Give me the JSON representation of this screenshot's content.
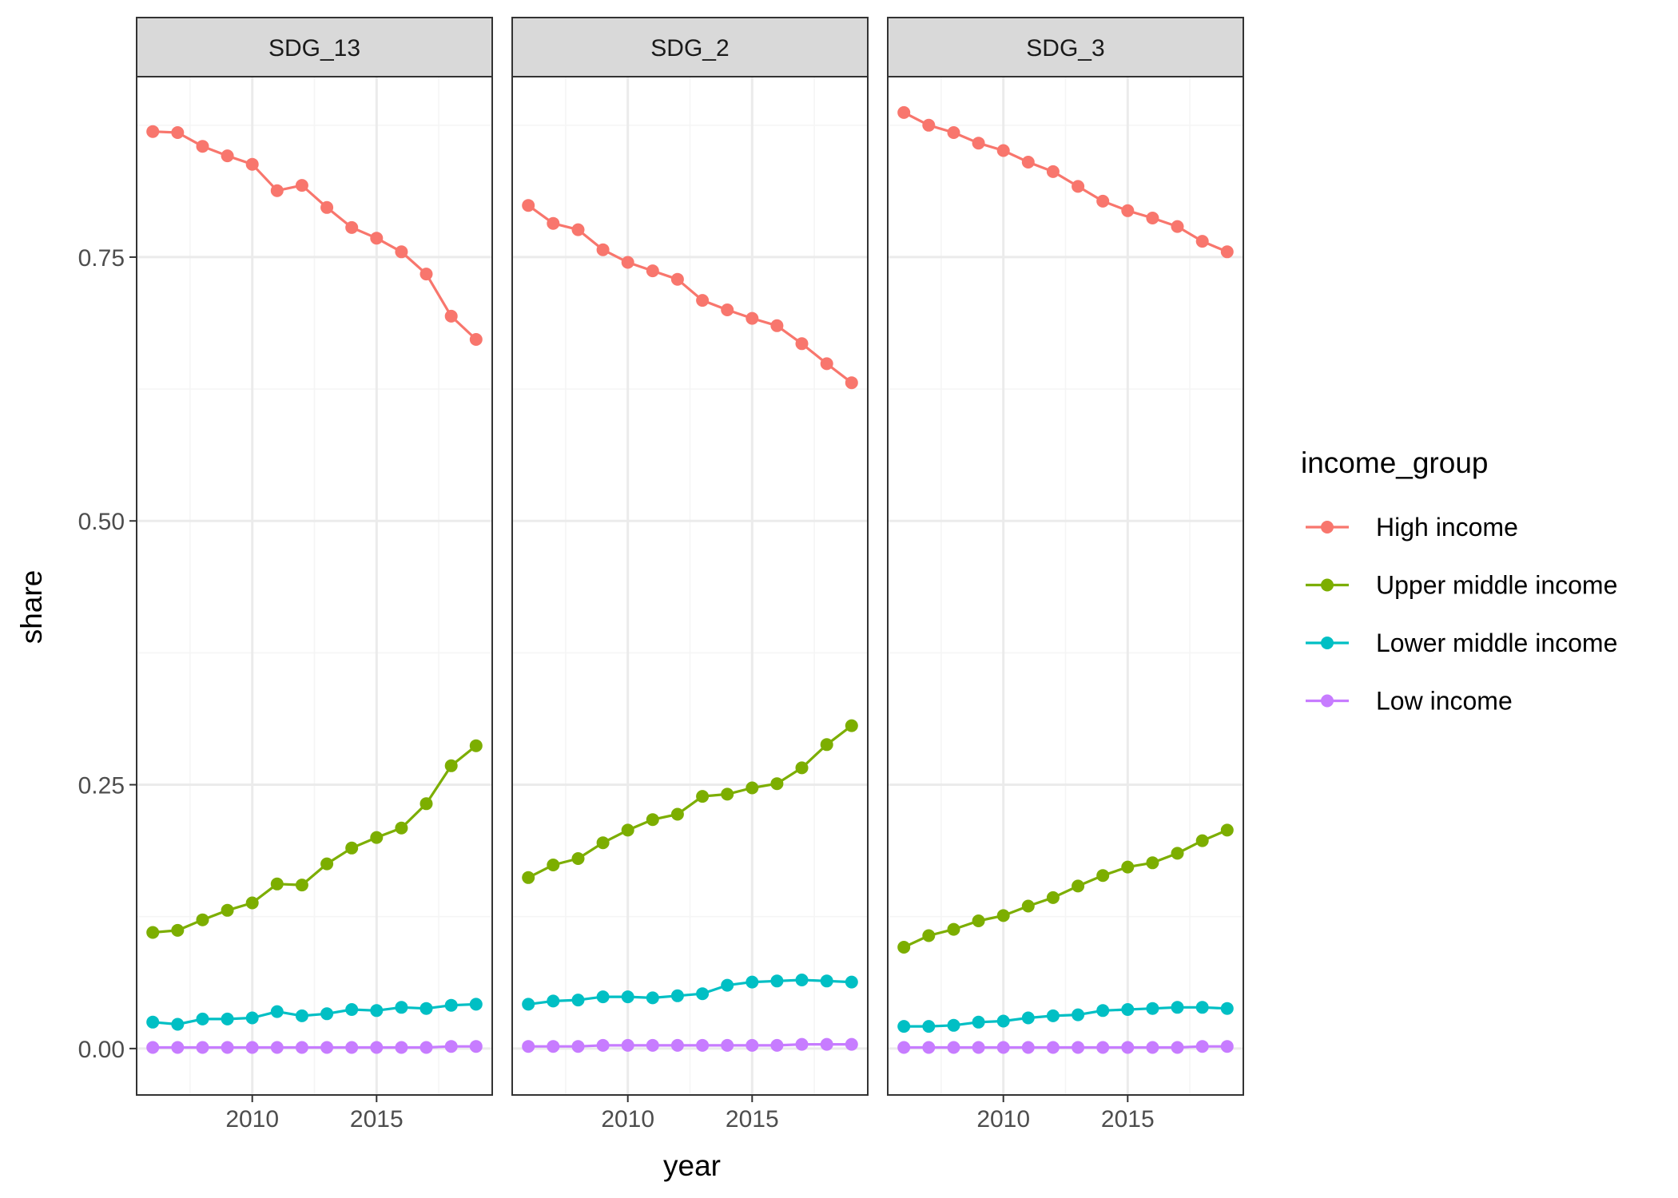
{
  "chart_data": {
    "type": "line",
    "xlabel": "year",
    "ylabel": "share",
    "xlim": [
      2005.35,
      2019.65
    ],
    "ylim": [
      -0.044,
      0.921
    ],
    "x_ticks": [
      2010,
      2015
    ],
    "x_tick_labels": [
      "2010",
      "2015"
    ],
    "y_ticks": [
      0,
      0.25,
      0.5,
      0.75
    ],
    "y_tick_labels": [
      "0.00",
      "0.25",
      "0.50",
      "0.75"
    ],
    "grid": true,
    "legend": {
      "title": "income_group",
      "placement": "right",
      "entries": [
        "High income",
        "Upper middle income",
        "Lower middle income",
        "Low income"
      ]
    },
    "colors": {
      "High income": "#F8766D",
      "Upper middle income": "#7CAE00",
      "Lower middle income": "#00BFC4",
      "Low income": "#C77CFF",
      "strip_fill": "#D9D9D9",
      "panel_border": "#333333",
      "grid_major": "#EBEBEB",
      "grid_minor": "#F5F5F5"
    },
    "x": [
      2006,
      2007,
      2008,
      2009,
      2010,
      2011,
      2012,
      2013,
      2014,
      2015,
      2016,
      2017,
      2018,
      2019
    ],
    "panels": [
      {
        "title": "SDG_13",
        "series": [
          {
            "name": "High income",
            "values": [
              0.869,
              0.868,
              0.855,
              0.846,
              0.838,
              0.813,
              0.818,
              0.797,
              0.778,
              0.768,
              0.755,
              0.734,
              0.694,
              0.672
            ]
          },
          {
            "name": "Upper middle income",
            "values": [
              0.11,
              0.112,
              0.122,
              0.131,
              0.138,
              0.156,
              0.155,
              0.175,
              0.19,
              0.2,
              0.209,
              0.232,
              0.268,
              0.287
            ]
          },
          {
            "name": "Lower middle income",
            "values": [
              0.025,
              0.023,
              0.028,
              0.028,
              0.029,
              0.035,
              0.031,
              0.033,
              0.037,
              0.036,
              0.039,
              0.038,
              0.041,
              0.042
            ]
          },
          {
            "name": "Low income",
            "values": [
              0.001,
              0.001,
              0.001,
              0.001,
              0.001,
              0.001,
              0.001,
              0.001,
              0.001,
              0.001,
              0.001,
              0.001,
              0.002,
              0.002
            ]
          }
        ]
      },
      {
        "title": "SDG_2",
        "series": [
          {
            "name": "High income",
            "values": [
              0.799,
              0.782,
              0.776,
              0.757,
              0.745,
              0.737,
              0.729,
              0.709,
              0.7,
              0.692,
              0.685,
              0.668,
              0.649,
              0.631
            ]
          },
          {
            "name": "Upper middle income",
            "values": [
              0.162,
              0.174,
              0.18,
              0.195,
              0.207,
              0.217,
              0.222,
              0.239,
              0.241,
              0.247,
              0.251,
              0.266,
              0.288,
              0.306
            ]
          },
          {
            "name": "Lower middle income",
            "values": [
              0.042,
              0.045,
              0.046,
              0.049,
              0.049,
              0.048,
              0.05,
              0.052,
              0.06,
              0.063,
              0.064,
              0.065,
              0.064,
              0.063
            ]
          },
          {
            "name": "Low income",
            "values": [
              0.002,
              0.002,
              0.002,
              0.003,
              0.003,
              0.003,
              0.003,
              0.003,
              0.003,
              0.003,
              0.003,
              0.004,
              0.004,
              0.004
            ]
          }
        ]
      },
      {
        "title": "SDG_3",
        "series": [
          {
            "name": "High income",
            "values": [
              0.887,
              0.875,
              0.868,
              0.858,
              0.851,
              0.84,
              0.831,
              0.817,
              0.803,
              0.794,
              0.787,
              0.779,
              0.765,
              0.755
            ]
          },
          {
            "name": "Upper middle income",
            "values": [
              0.096,
              0.107,
              0.113,
              0.121,
              0.126,
              0.135,
              0.143,
              0.154,
              0.164,
              0.172,
              0.176,
              0.185,
              0.197,
              0.207
            ]
          },
          {
            "name": "Lower middle income",
            "values": [
              0.021,
              0.021,
              0.022,
              0.025,
              0.026,
              0.029,
              0.031,
              0.032,
              0.036,
              0.037,
              0.038,
              0.039,
              0.039,
              0.038
            ]
          },
          {
            "name": "Low income",
            "values": [
              0.001,
              0.001,
              0.001,
              0.001,
              0.001,
              0.001,
              0.001,
              0.001,
              0.001,
              0.001,
              0.001,
              0.001,
              0.002,
              0.002
            ]
          }
        ]
      }
    ]
  }
}
